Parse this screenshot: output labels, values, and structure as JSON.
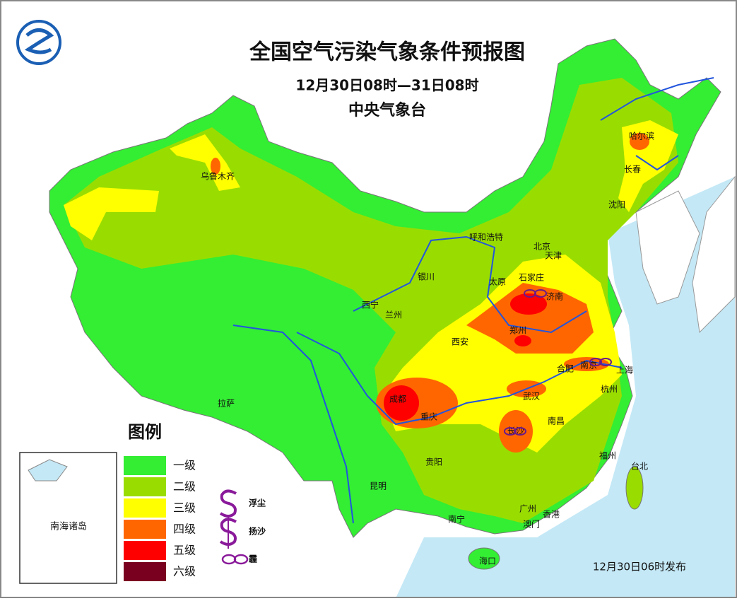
{
  "header": {
    "title": "全国空气污染气象条件预报图",
    "period": "12月30日08时—31日08时",
    "issuer": "中央气象台"
  },
  "cities": [
    "乌鲁木齐",
    "哈尔滨",
    "长春",
    "沈阳",
    "呼和浩特",
    "北京",
    "天津",
    "石家庄",
    "太原",
    "济南",
    "银川",
    "西宁",
    "兰州",
    "郑州",
    "西安",
    "合肥",
    "南京",
    "上海",
    "杭州",
    "成都",
    "重庆",
    "武汉",
    "长沙",
    "南昌",
    "拉萨",
    "贵阳",
    "福州",
    "台北",
    "昆明",
    "南宁",
    "广州",
    "香港",
    "澳门",
    "海口"
  ],
  "legend": {
    "title": "图例",
    "levels": [
      {
        "label": "一级",
        "color": "#33ee33"
      },
      {
        "label": "二级",
        "color": "#99dd00"
      },
      {
        "label": "三级",
        "color": "#ffff00"
      },
      {
        "label": "四级",
        "color": "#ff6600"
      },
      {
        "label": "五级",
        "color": "#ff0000"
      },
      {
        "label": "六级",
        "color": "#7a0020"
      }
    ],
    "symbols": [
      "浮尘",
      "扬沙",
      "霾"
    ]
  },
  "inset": {
    "label": "南海诸岛"
  },
  "footer": {
    "issued": "12月30日06时发布"
  }
}
